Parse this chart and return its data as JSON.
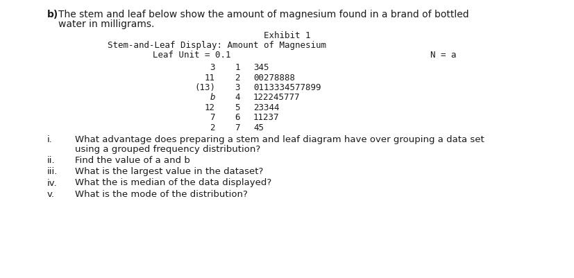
{
  "bg_color": "#ffffff",
  "title_b_bold": "b)",
  "title_b_normal": "  The stem and leaf below show the amount of magnesium found in a brand of bottled",
  "title_b2": "    water in milligrams.",
  "exhibit_title": "Exhibit 1",
  "stem_title": "Stem-and-Leaf Display: Amount of Magnesium",
  "leaf_unit": "Leaf Unit = 0.1",
  "n_label": "N = a",
  "stem_rows": [
    {
      "depth": "3",
      "stem": "1",
      "leaves": "345"
    },
    {
      "depth": "11",
      "stem": "2",
      "leaves": "00278888"
    },
    {
      "depth": "(13)",
      "stem": "3",
      "leaves": "0113334577899"
    },
    {
      "depth": "b",
      "stem": "4",
      "leaves": "122245777",
      "italic": true
    },
    {
      "depth": "12",
      "stem": "5",
      "leaves": "23344"
    },
    {
      "depth": "7",
      "stem": "6",
      "leaves": "11237"
    },
    {
      "depth": "2",
      "stem": "7",
      "leaves": "45"
    }
  ],
  "questions": [
    {
      "roman": "i.",
      "line1": "What advantage does preparing a stem and leaf diagram have over grouping a data set",
      "line2": "using a grouped frequency distribution?"
    },
    {
      "roman": "ii.",
      "line1": "Find the value of a and b",
      "line2": ""
    },
    {
      "roman": "iii.",
      "line1": "What is the largest value in the dataset?",
      "line2": ""
    },
    {
      "roman": "iv.",
      "line1": "What the is median of the data displayed?",
      "line2": ""
    },
    {
      "roman": "v.",
      "line1": "What is the mode of the distribution?",
      "line2": ""
    }
  ],
  "mono_font_size": 9.0,
  "body_font_size": 9.5,
  "title_font_size": 10.0,
  "text_color": "#1a1a1a"
}
